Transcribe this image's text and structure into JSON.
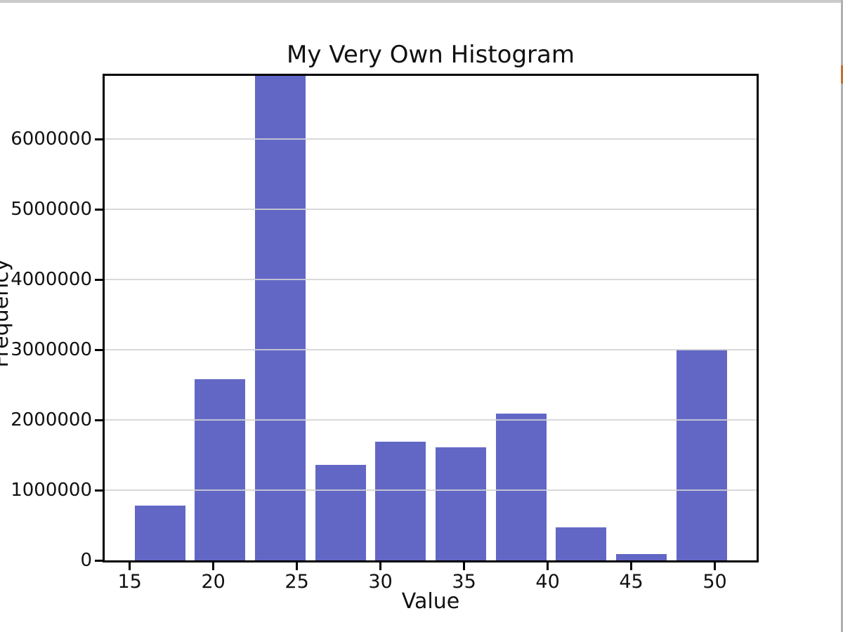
{
  "figure": {
    "title": "My Very Own Histogram",
    "xlabel": "Value",
    "ylabel": "Frequency"
  },
  "chart_data": {
    "type": "bar",
    "subtype": "histogram",
    "title": "My Very Own Histogram",
    "xlabel": "Value",
    "ylabel": "Frequency",
    "bin_edges": [
      15.0,
      18.6,
      22.2,
      25.8,
      29.4,
      33.0,
      36.6,
      40.2,
      43.8,
      47.4,
      51.0
    ],
    "counts": [
      780000,
      2580000,
      7000000,
      1360000,
      1690000,
      1610000,
      2090000,
      470000,
      90000,
      3000000
    ],
    "bar_rwidth": 0.84,
    "xlim": [
      13.5,
      52.5
    ],
    "ylim": [
      0,
      6900000
    ],
    "xticks": [
      15,
      20,
      25,
      30,
      35,
      40,
      45,
      50
    ],
    "yticks": [
      0,
      1000000,
      2000000,
      3000000,
      4000000,
      5000000,
      6000000
    ],
    "grid": "horizontal",
    "legend": "none",
    "colors": {
      "bar": "#6267c6",
      "grid": "#d2d2d2",
      "spine": "#000000",
      "text": "#111111"
    }
  },
  "screen_edges": {
    "top_strip_color": "#cacaca",
    "right_line_color": "#b0b0b0",
    "right_accent_color": "#c06f30"
  }
}
